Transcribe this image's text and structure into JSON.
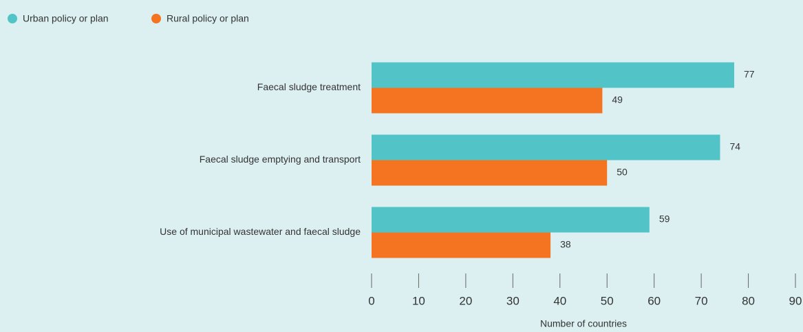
{
  "chart_data": {
    "type": "bar",
    "orientation": "horizontal",
    "x_label": "Number of countries",
    "categories": [
      "Faecal sludge treatment",
      "Faecal sludge emptying and transport",
      "Use of municipal wastewater and faecal sludge"
    ],
    "series": [
      {
        "name": "Urban policy or plan",
        "color": "#52c4c8",
        "values": [
          77,
          74,
          59
        ]
      },
      {
        "name": "Rural policy or plan",
        "color": "#f47421",
        "values": [
          49,
          50,
          38
        ]
      }
    ],
    "xlim": [
      0,
      90
    ],
    "xticks": [
      0,
      10,
      20,
      30,
      40,
      50,
      60,
      70,
      80,
      90
    ],
    "legend": "top-left"
  }
}
